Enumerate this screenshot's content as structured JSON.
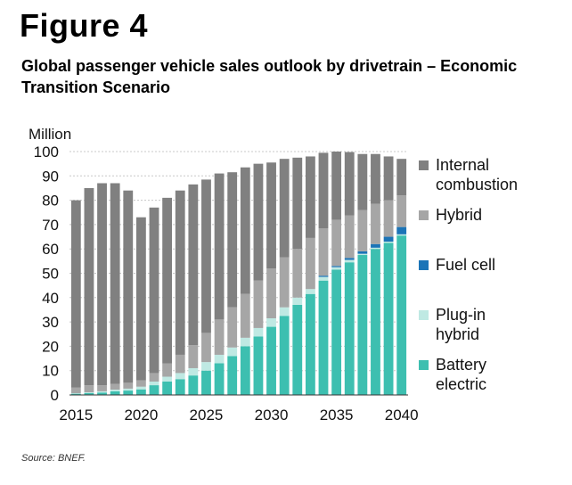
{
  "figure_label": "Figure 4",
  "source": "Source: BNEF.",
  "chart_data": {
    "type": "bar",
    "stacked": true,
    "title": "Global passenger vehicle sales outlook by drivetrain – Economic Transition Scenario",
    "ylabel": "Million",
    "xlabel": "",
    "ylim": [
      0,
      100
    ],
    "yticks": [
      0,
      10,
      20,
      30,
      40,
      50,
      60,
      70,
      80,
      90,
      100
    ],
    "xtick_labels": [
      "2015",
      "2020",
      "2025",
      "2030",
      "2035",
      "2040"
    ],
    "grid": true,
    "legend_position": "right",
    "categories": [
      "2015",
      "2016",
      "2017",
      "2018",
      "2019",
      "2020",
      "2021",
      "2022",
      "2023",
      "2024",
      "2025",
      "2026",
      "2027",
      "2028",
      "2029",
      "2030",
      "2031",
      "2032",
      "2033",
      "2034",
      "2035",
      "2036",
      "2037",
      "2038",
      "2039",
      "2040"
    ],
    "series": [
      {
        "name": "Battery electric",
        "legend_label": [
          "Battery",
          "electric"
        ],
        "color": "#3dbfb0",
        "values": [
          0.5,
          0.8,
          1.0,
          1.5,
          1.8,
          2.3,
          4.0,
          5.5,
          6.5,
          8.0,
          10.0,
          13.0,
          16.0,
          20.0,
          24.0,
          28.0,
          32.5,
          37.0,
          41.5,
          47.0,
          51.5,
          54.5,
          57.5,
          60.0,
          62.5,
          65.5
        ]
      },
      {
        "name": "Plug-in hybrid",
        "legend_label": [
          "Plug-in",
          "hybrid"
        ],
        "color": "#bfe9e3",
        "values": [
          0.2,
          0.3,
          0.5,
          0.7,
          0.8,
          1.1,
          1.5,
          2.0,
          2.5,
          3.0,
          3.5,
          3.5,
          3.5,
          3.5,
          3.5,
          3.5,
          3.5,
          3.0,
          2.0,
          1.5,
          1.0,
          1.0,
          0.5,
          0.5,
          0.5,
          0.5
        ]
      },
      {
        "name": "Fuel cell",
        "legend_label": [
          "Fuel cell"
        ],
        "color": "#1b74b7",
        "values": [
          0,
          0,
          0,
          0,
          0,
          0,
          0,
          0,
          0,
          0,
          0,
          0,
          0,
          0,
          0,
          0,
          0,
          0,
          0,
          0.5,
          0.5,
          0.8,
          1.0,
          1.5,
          2.0,
          3.0
        ]
      },
      {
        "name": "Hybrid",
        "legend_label": [
          "Hybrid"
        ],
        "color": "#a6a6a6",
        "values": [
          2.3,
          2.9,
          2.5,
          2.3,
          2.4,
          2.6,
          3.5,
          5.5,
          7.5,
          9.5,
          12.0,
          14.5,
          16.5,
          18.0,
          19.5,
          20.5,
          20.5,
          20.0,
          21.0,
          19.5,
          19.0,
          17.5,
          17.0,
          16.5,
          15.0,
          13.0
        ]
      },
      {
        "name": "Internal combustion",
        "legend_label": [
          "Internal",
          "combustion"
        ],
        "color": "#808080",
        "values": [
          77.0,
          81.0,
          83.0,
          82.5,
          79.0,
          67.0,
          68.0,
          68.0,
          67.5,
          66.0,
          63.0,
          60.0,
          55.5,
          52.0,
          48.0,
          43.5,
          40.5,
          37.5,
          33.5,
          31.0,
          28.0,
          26.0,
          23.0,
          20.5,
          18.0,
          15.0
        ]
      }
    ]
  }
}
